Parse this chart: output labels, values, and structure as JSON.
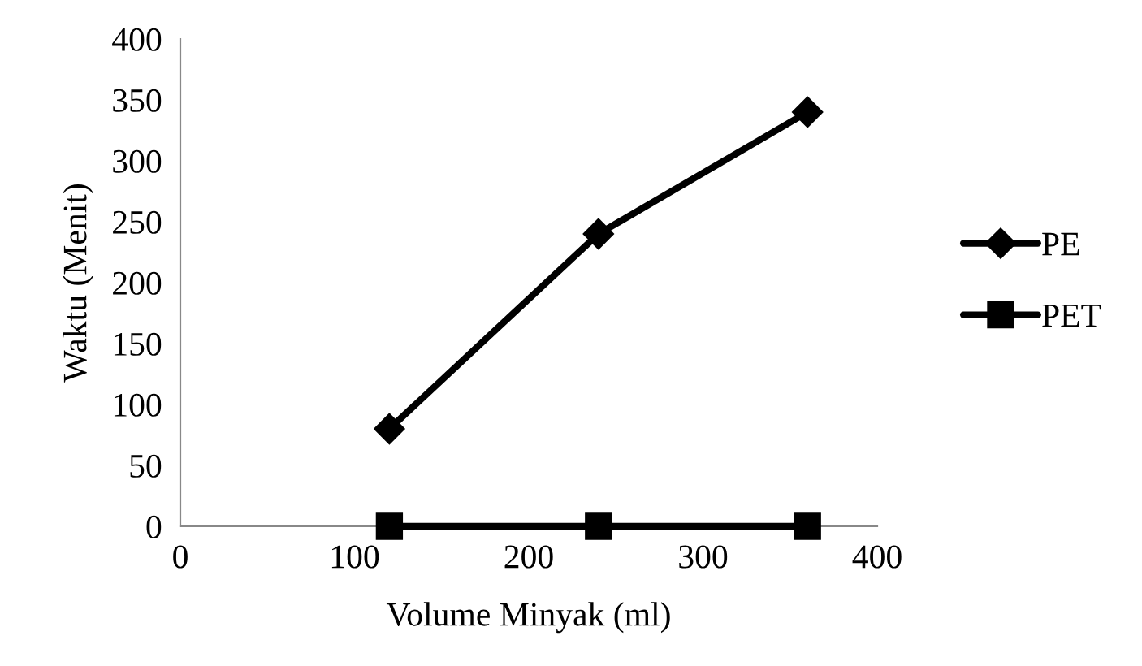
{
  "chart_data": {
    "type": "line",
    "xlabel": "Volume Minyak (ml)",
    "ylabel": "Waktu (Menit)",
    "x": [
      120,
      240,
      360
    ],
    "series": [
      {
        "name": "PE",
        "color": "#000000",
        "values": [
          80,
          240,
          340
        ],
        "marker": "diamond"
      },
      {
        "name": "PET",
        "color": "#000000",
        "values": [
          0,
          0,
          0
        ],
        "marker": "square"
      }
    ],
    "xlim": [
      0,
      400
    ],
    "xticks": [
      0,
      100,
      200,
      300,
      400
    ],
    "ylim": [
      0,
      400
    ],
    "yticks": [
      0,
      50,
      100,
      150,
      200,
      250,
      300,
      350,
      400
    ],
    "grid": false,
    "legend": "right",
    "line_style": "solid"
  }
}
